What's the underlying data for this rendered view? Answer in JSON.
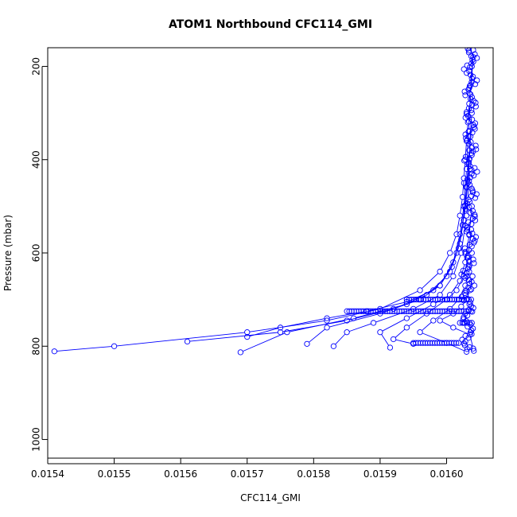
{
  "chart_data": {
    "type": "scatter",
    "title": "ATOM1 Northbound CFC114_GMI",
    "xlabel": "CFC114_GMI",
    "ylabel": "Pressure (mbar)",
    "xlim": [
      0.0154,
      0.01607
    ],
    "ylim": [
      1040,
      160
    ],
    "y_reversed": true,
    "x_ticks": [
      "0.0154",
      "0.0155",
      "0.0156",
      "0.0157",
      "0.0158",
      "0.0159",
      "0.0160"
    ],
    "x_tick_values": [
      0.0154,
      0.0155,
      0.0156,
      0.0157,
      0.0158,
      0.0159,
      0.016
    ],
    "y_ticks": [
      "200",
      "400",
      "600",
      "800",
      "1000"
    ],
    "y_tick_values": [
      200,
      400,
      600,
      800,
      1000
    ],
    "marker": "open-circle",
    "color": "#0000ff",
    "series": [
      {
        "values": [
          [
            0.01604,
            165
          ],
          [
            0.016038,
            200
          ],
          [
            0.016036,
            240
          ],
          [
            0.016034,
            280
          ],
          [
            0.016032,
            320
          ],
          [
            0.01603,
            360
          ],
          [
            0.016028,
            400
          ],
          [
            0.016026,
            440
          ],
          [
            0.016024,
            480
          ],
          [
            0.01602,
            520
          ],
          [
            0.016015,
            560
          ],
          [
            0.016005,
            600
          ],
          [
            0.01599,
            640
          ],
          [
            0.01596,
            680
          ],
          [
            0.0159,
            720
          ],
          [
            0.01582,
            745
          ],
          [
            0.0157,
            770
          ],
          [
            0.0155,
            800
          ],
          [
            0.01541,
            811
          ]
        ]
      },
      {
        "values": [
          [
            0.01604,
            180
          ],
          [
            0.016036,
            260
          ],
          [
            0.016033,
            340
          ],
          [
            0.01603,
            420
          ],
          [
            0.016026,
            500
          ],
          [
            0.01602,
            560
          ],
          [
            0.01601,
            620
          ],
          [
            0.01599,
            670
          ],
          [
            0.01594,
            710
          ],
          [
            0.01586,
            740
          ],
          [
            0.01576,
            770
          ],
          [
            0.01569,
            813
          ]
        ]
      },
      {
        "values": [
          [
            0.016038,
            300
          ],
          [
            0.016034,
            380
          ],
          [
            0.01603,
            460
          ],
          [
            0.016024,
            540
          ],
          [
            0.016015,
            600
          ],
          [
            0.016,
            650
          ],
          [
            0.01597,
            690
          ],
          [
            0.01592,
            720
          ],
          [
            0.01585,
            745
          ],
          [
            0.01575,
            770
          ],
          [
            0.01561,
            790
          ]
        ]
      },
      {
        "values": [
          [
            0.016036,
            350
          ],
          [
            0.016032,
            450
          ],
          [
            0.016026,
            530
          ],
          [
            0.016018,
            590
          ],
          [
            0.016005,
            640
          ],
          [
            0.01598,
            680
          ],
          [
            0.01594,
            705
          ],
          [
            0.01588,
            725
          ],
          [
            0.01582,
            740
          ],
          [
            0.01575,
            760
          ],
          [
            0.0157,
            780
          ]
        ]
      },
      {
        "values": [
          [
            0.016034,
            400
          ],
          [
            0.016028,
            500
          ],
          [
            0.01602,
            580
          ],
          [
            0.016008,
            630
          ],
          [
            0.01599,
            670
          ],
          [
            0.01596,
            700
          ],
          [
            0.0159,
            730
          ],
          [
            0.01582,
            760
          ],
          [
            0.01579,
            795
          ]
        ]
      },
      {
        "values": [
          [
            0.016035,
            420
          ],
          [
            0.01603,
            520
          ],
          [
            0.016022,
            600
          ],
          [
            0.01601,
            650
          ],
          [
            0.01599,
            690
          ],
          [
            0.01595,
            720
          ],
          [
            0.01589,
            750
          ],
          [
            0.01585,
            770
          ],
          [
            0.01583,
            800
          ]
        ]
      },
      {
        "values": [
          [
            0.016038,
            500
          ],
          [
            0.016034,
            560
          ],
          [
            0.016028,
            620
          ],
          [
            0.01602,
            660
          ],
          [
            0.016005,
            690
          ],
          [
            0.01598,
            710
          ],
          [
            0.01594,
            740
          ],
          [
            0.0159,
            770
          ],
          [
            0.015915,
            803
          ]
        ]
      },
      {
        "values": [
          [
            0.016037,
            550
          ],
          [
            0.016032,
            610
          ],
          [
            0.016026,
            650
          ],
          [
            0.016015,
            680
          ],
          [
            0.016,
            700
          ],
          [
            0.01597,
            730
          ],
          [
            0.01594,
            760
          ],
          [
            0.01592,
            785
          ],
          [
            0.01595,
            795
          ]
        ]
      },
      {
        "values": [
          [
            0.016038,
            600
          ],
          [
            0.016034,
            640
          ],
          [
            0.016028,
            670
          ],
          [
            0.016018,
            700
          ],
          [
            0.016005,
            720
          ],
          [
            0.01598,
            745
          ],
          [
            0.01596,
            770
          ],
          [
            0.016,
            793
          ],
          [
            0.01603,
            812
          ]
        ]
      },
      {
        "values": [
          [
            0.016039,
            650
          ],
          [
            0.016035,
            680
          ],
          [
            0.01603,
            700
          ],
          [
            0.016022,
            715
          ],
          [
            0.01601,
            730
          ],
          [
            0.01599,
            745
          ],
          [
            0.01601,
            760
          ],
          [
            0.016035,
            775
          ],
          [
            0.01604,
            805
          ]
        ]
      }
    ],
    "horizontal_runs": [
      {
        "y": 700,
        "x_from": 0.01594,
        "x_to": 0.01604
      },
      {
        "y": 725,
        "x_from": 0.01585,
        "x_to": 0.01604
      },
      {
        "y": 750,
        "x_from": 0.01602,
        "x_to": 0.01604
      },
      {
        "y": 793,
        "x_from": 0.01595,
        "x_to": 0.01602
      }
    ]
  }
}
